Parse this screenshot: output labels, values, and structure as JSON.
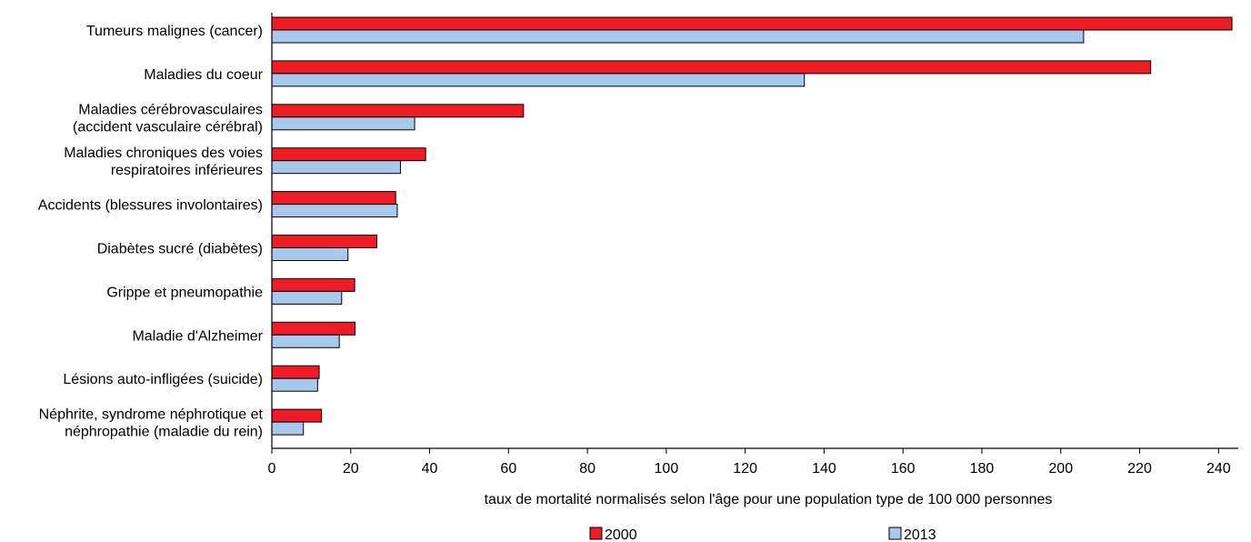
{
  "chart_data": {
    "type": "bar",
    "orientation": "horizontal",
    "categories": [
      [
        "Tumeurs malignes (cancer)"
      ],
      [
        "Maladies du coeur"
      ],
      [
        "Maladies cérébrovasculaires",
        "(accident vasculaire cérébral)"
      ],
      [
        "Maladies chroniques des voies",
        "respiratoires inférieures"
      ],
      [
        "Accidents (blessures involontaires)"
      ],
      [
        "Diabètes sucré (diabètes)"
      ],
      [
        "Grippe et pneumopathie"
      ],
      [
        "Maladie d'Alzheimer"
      ],
      [
        "Lésions auto-infligées (suicide)"
      ],
      [
        "Néphrite, syndrome néphrotique et",
        "néphropathie (maladie du rein)"
      ]
    ],
    "series": [
      {
        "name": "2000",
        "color": "#ee1c25",
        "values": [
          243.4,
          222.8,
          63.8,
          39.0,
          31.4,
          26.6,
          21.0,
          21.1,
          12.0,
          12.6
        ]
      },
      {
        "name": "2013",
        "color": "#a8c8ec",
        "values": [
          205.8,
          135.0,
          36.2,
          32.6,
          31.8,
          19.3,
          17.7,
          17.1,
          11.6,
          8.0
        ]
      }
    ],
    "xlabel": "taux de mortalité normalisés selon l'âge pour une population type de 100 000 personnes",
    "xlim": [
      0,
      245
    ],
    "xticks": [
      0,
      20,
      40,
      60,
      80,
      100,
      120,
      140,
      160,
      180,
      200,
      220,
      240
    ],
    "grid": false,
    "legend_position": "bottom"
  }
}
